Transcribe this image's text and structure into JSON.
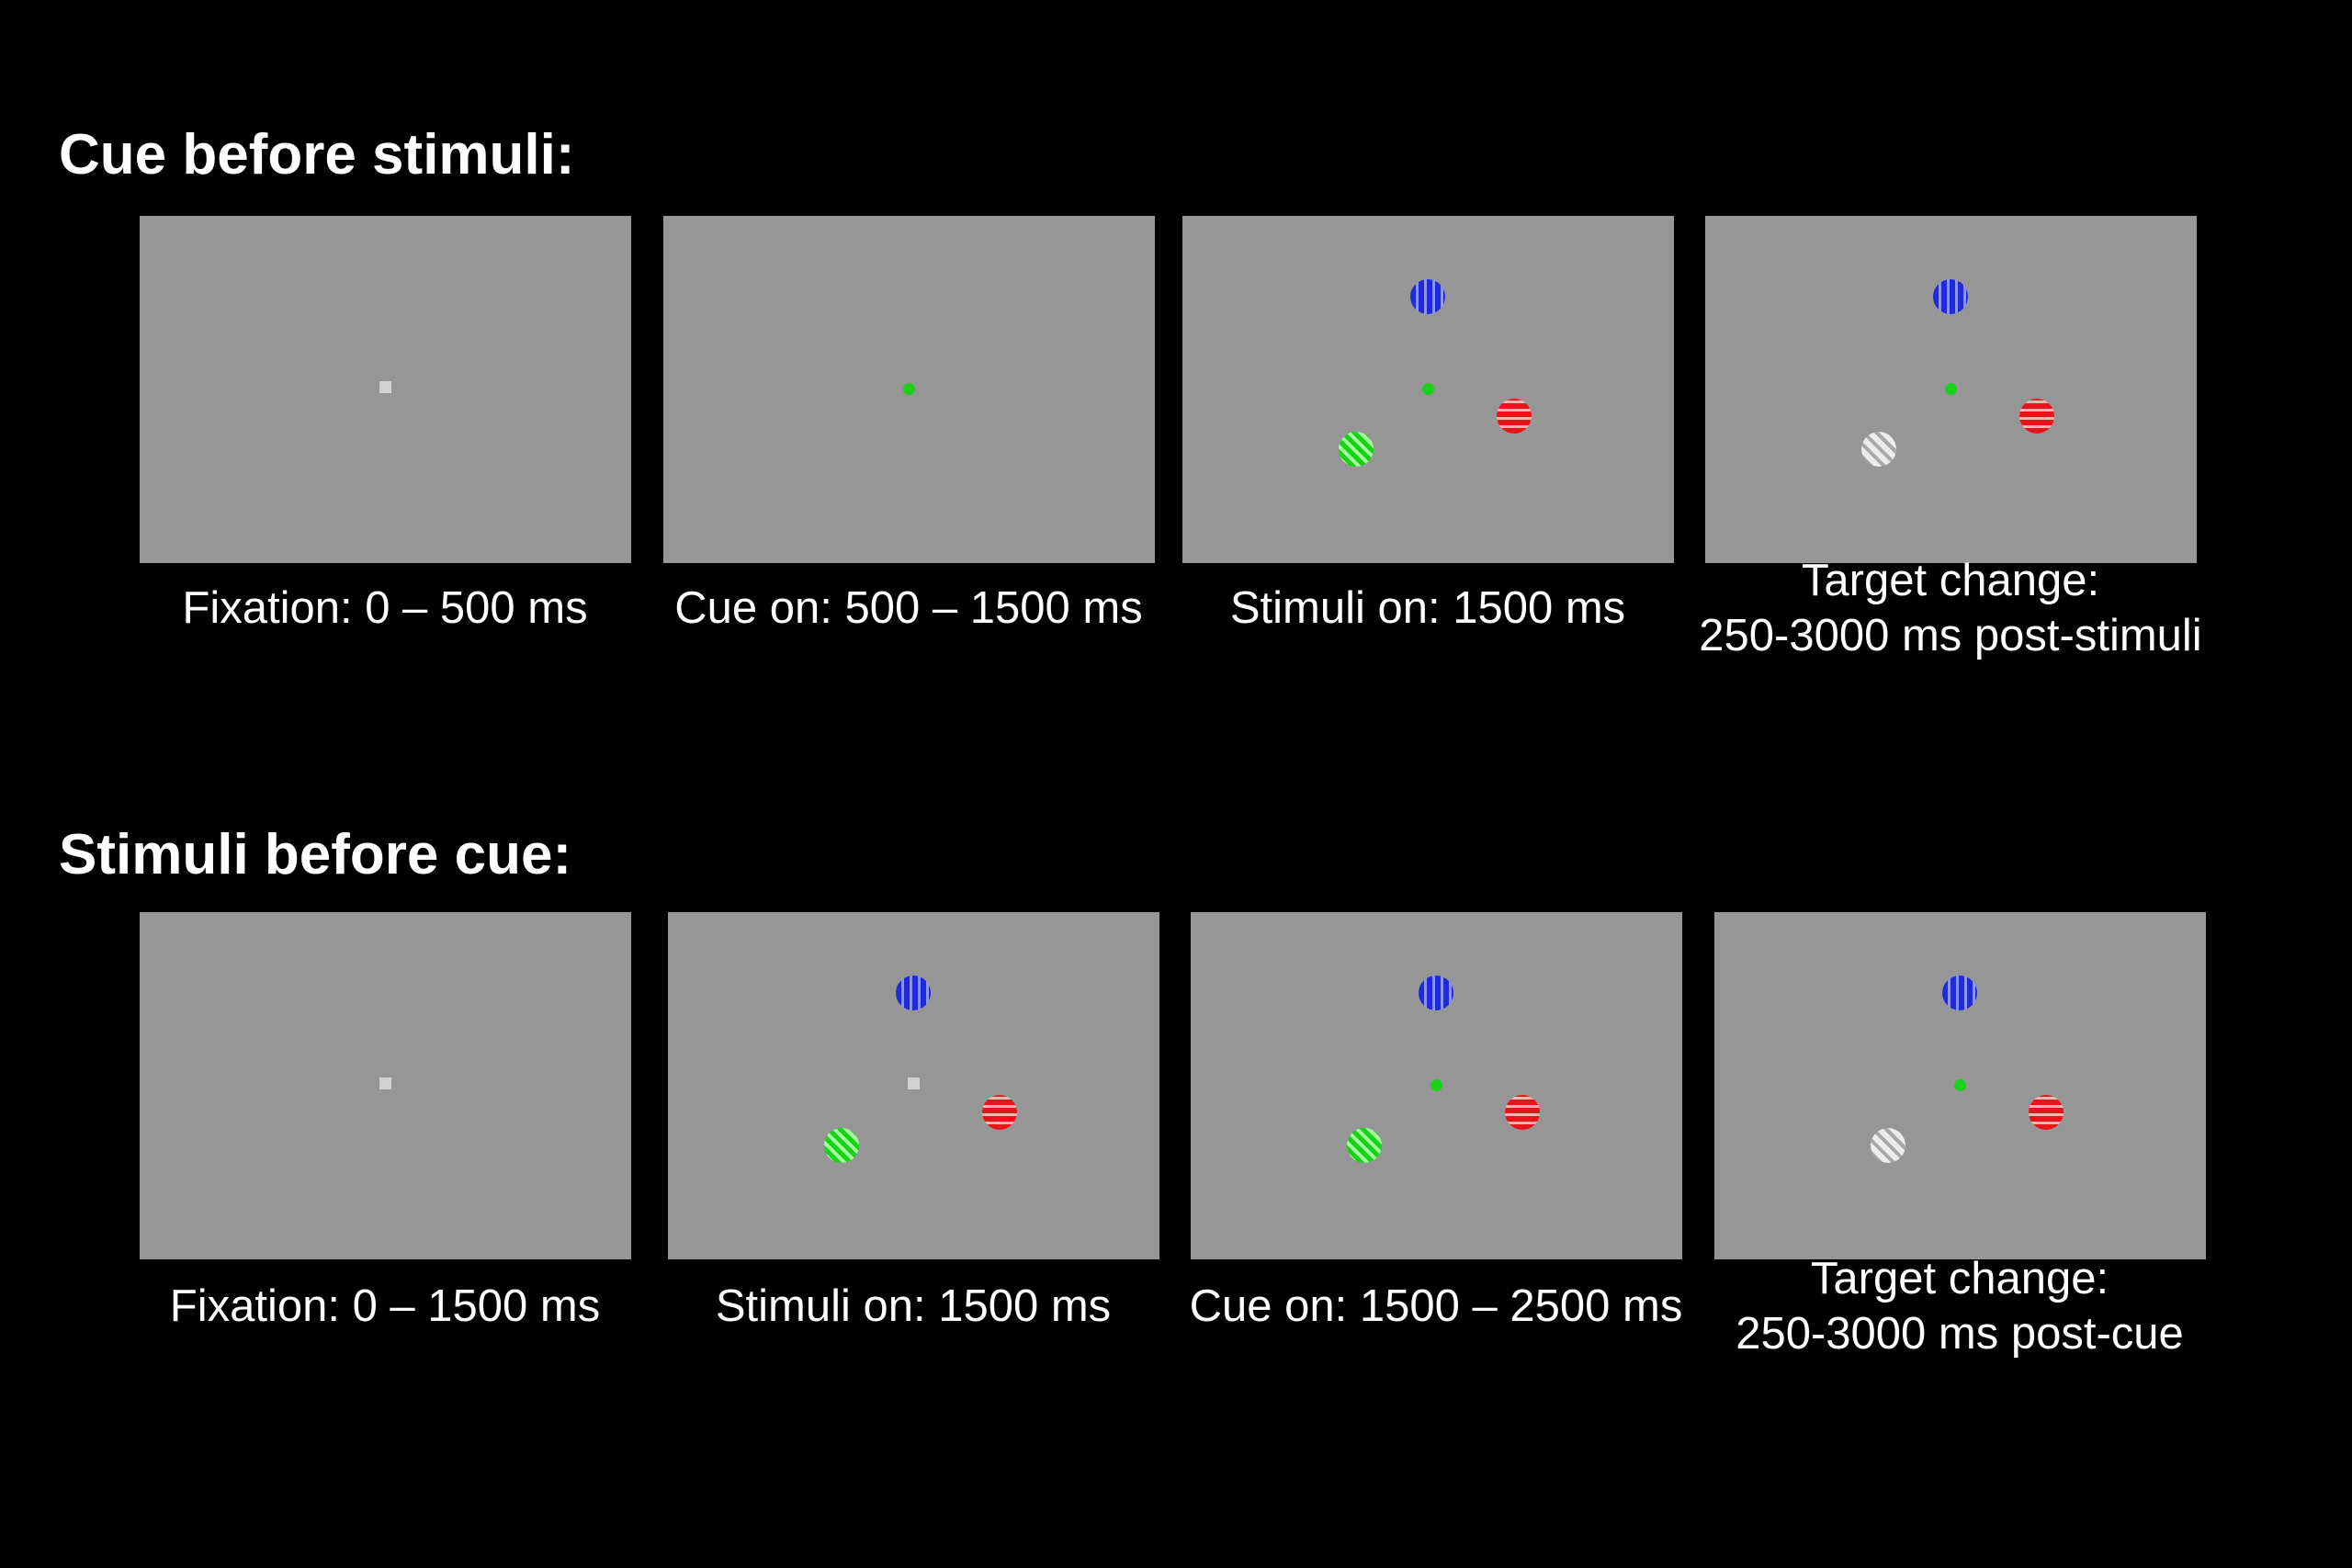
{
  "colors": {
    "background": "#000000",
    "panel": "#969696",
    "fixation_neutral": "#d2d2d2",
    "fixation_cue": "#19d219",
    "stim_blue": "#1f2bd6",
    "stim_red": "#e8141c",
    "stim_green": "#17d217",
    "stim_changed": "#ececec"
  },
  "conditions": [
    {
      "title": "Cue before stimuli:",
      "frames": [
        {
          "caption": [
            "Fixation: 0 – 500 ms"
          ],
          "fixation": "neutral",
          "stimuli": []
        },
        {
          "caption": [
            "Cue on: 500 – 1500 ms"
          ],
          "fixation": "cue",
          "stimuli": []
        },
        {
          "caption": [
            "Stimuli on: 1500 ms"
          ],
          "fixation": "cue",
          "stimuli": [
            {
              "position": "top",
              "icon": "vertical-grating-icon",
              "color": "blue"
            },
            {
              "position": "right",
              "icon": "horizontal-grating-icon",
              "color": "red"
            },
            {
              "position": "lower-left",
              "icon": "oblique-grating-icon",
              "color": "green"
            }
          ]
        },
        {
          "caption": [
            "Target change:",
            "250-3000 ms post-stimuli"
          ],
          "fixation": "cue",
          "stimuli": [
            {
              "position": "top",
              "icon": "vertical-grating-icon",
              "color": "blue"
            },
            {
              "position": "right",
              "icon": "horizontal-grating-icon",
              "color": "red"
            },
            {
              "position": "lower-left",
              "icon": "oblique-grating-icon",
              "color": "changed"
            }
          ]
        }
      ]
    },
    {
      "title": "Stimuli before cue:",
      "frames": [
        {
          "caption": [
            "Fixation: 0 – 1500 ms"
          ],
          "fixation": "neutral",
          "stimuli": []
        },
        {
          "caption": [
            "Stimuli on: 1500 ms"
          ],
          "fixation": "neutral",
          "stimuli": [
            {
              "position": "top",
              "icon": "vertical-grating-icon",
              "color": "blue"
            },
            {
              "position": "right",
              "icon": "horizontal-grating-icon",
              "color": "red"
            },
            {
              "position": "lower-left",
              "icon": "oblique-grating-icon",
              "color": "green"
            }
          ]
        },
        {
          "caption": [
            "Cue on: 1500 – 2500 ms"
          ],
          "fixation": "cue",
          "stimuli": [
            {
              "position": "top",
              "icon": "vertical-grating-icon",
              "color": "blue"
            },
            {
              "position": "right",
              "icon": "horizontal-grating-icon",
              "color": "red"
            },
            {
              "position": "lower-left",
              "icon": "oblique-grating-icon",
              "color": "green"
            }
          ]
        },
        {
          "caption": [
            "Target change:",
            "250-3000 ms post-cue"
          ],
          "fixation": "cue",
          "stimuli": [
            {
              "position": "top",
              "icon": "vertical-grating-icon",
              "color": "blue"
            },
            {
              "position": "right",
              "icon": "horizontal-grating-icon",
              "color": "red"
            },
            {
              "position": "lower-left",
              "icon": "oblique-grating-icon",
              "color": "changed"
            }
          ]
        }
      ]
    }
  ]
}
